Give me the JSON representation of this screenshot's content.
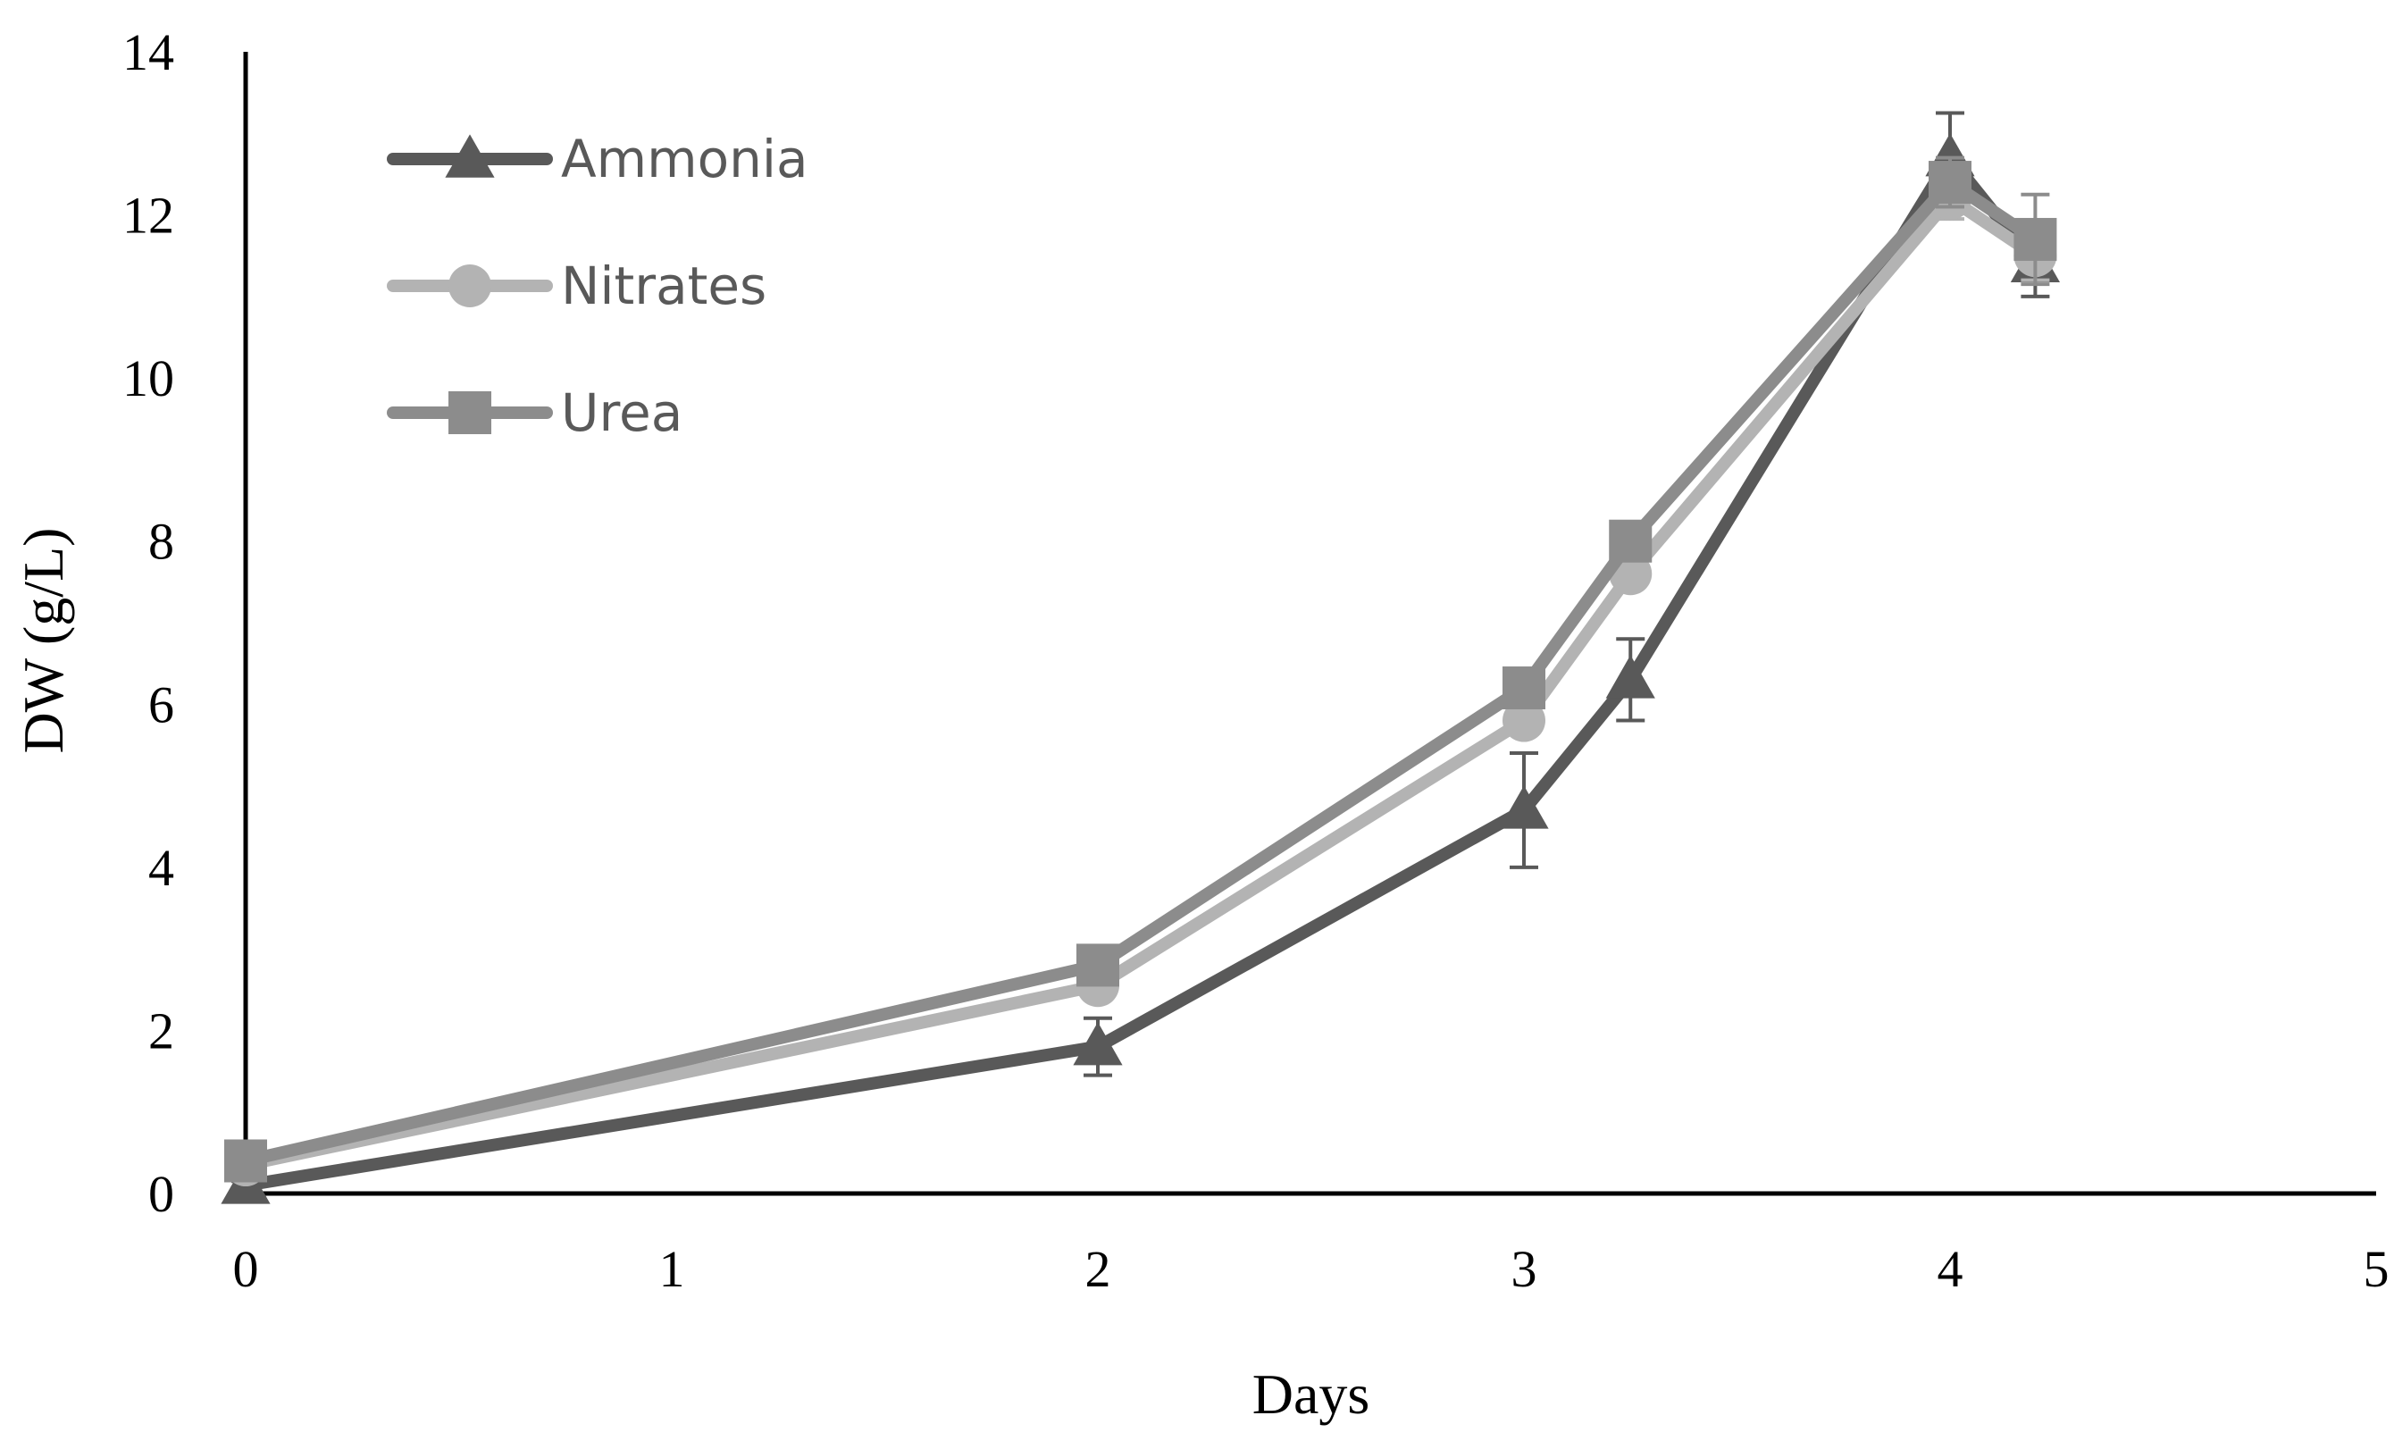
{
  "chart_data": {
    "type": "line",
    "xlabel": "Days",
    "ylabel": "DW (g/L)",
    "xlim": [
      0,
      5
    ],
    "ylim": [
      0,
      14
    ],
    "x_ticks": [
      "0",
      "1",
      "2",
      "3",
      "4",
      "5"
    ],
    "y_ticks": [
      "0",
      "2",
      "4",
      "6",
      "8",
      "10",
      "12",
      "14"
    ],
    "grid": false,
    "legend_position": "top-left",
    "series": [
      {
        "name": "Ammonia",
        "marker": "triangle",
        "color": "#595959",
        "x": [
          0,
          2,
          3,
          3.25,
          4,
          4.2
        ],
        "y": [
          0.1,
          1.8,
          4.7,
          6.3,
          12.7,
          11.4
        ],
        "error": [
          0.05,
          0.35,
          0.7,
          0.5,
          0.55,
          0.4
        ]
      },
      {
        "name": "Nitrates",
        "marker": "circle",
        "color": "#b3b3b3",
        "x": [
          0,
          2,
          3,
          3.25,
          4,
          4.2
        ],
        "y": [
          0.35,
          2.55,
          5.8,
          7.6,
          12.2,
          11.5
        ],
        "error": [
          0.05,
          0.1,
          0.15,
          0.15,
          0.25,
          0.3
        ]
      },
      {
        "name": "Urea",
        "marker": "square",
        "color": "#8c8c8c",
        "x": [
          0,
          2,
          3,
          3.25,
          4,
          4.2
        ],
        "y": [
          0.4,
          2.8,
          6.2,
          8.0,
          12.4,
          11.7
        ],
        "error": [
          0.05,
          0.1,
          0.1,
          0.1,
          0.3,
          0.55
        ]
      }
    ]
  }
}
